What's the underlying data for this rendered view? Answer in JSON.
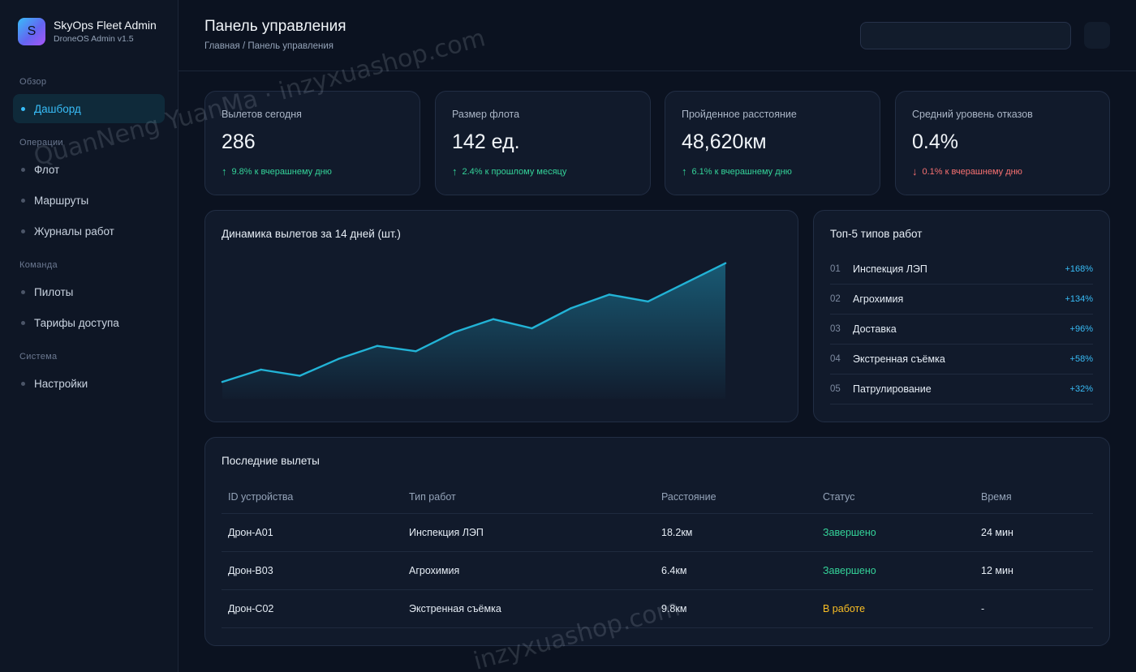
{
  "brand": {
    "logo_letter": "S",
    "name": "SkyOps Fleet Admin",
    "subtitle": "DroneOS Admin v1.5"
  },
  "sidebar": {
    "sections": [
      {
        "label": "Обзор",
        "items": [
          {
            "label": "Дашборд",
            "active": true
          }
        ]
      },
      {
        "label": "Операции",
        "items": [
          {
            "label": "Флот"
          },
          {
            "label": "Маршруты"
          },
          {
            "label": "Журналы работ"
          }
        ]
      },
      {
        "label": "Команда",
        "items": [
          {
            "label": "Пилоты"
          },
          {
            "label": "Тарифы доступа"
          }
        ]
      },
      {
        "label": "Система",
        "items": [
          {
            "label": "Настройки"
          }
        ]
      }
    ]
  },
  "header": {
    "title": "Панель управления",
    "breadcrumb": "Главная / Панель управления"
  },
  "stats": [
    {
      "label": "Вылетов сегодня",
      "value": "286",
      "arrow": "↑",
      "change": "9.8% к вчерашнему дню",
      "trend": "up"
    },
    {
      "label": "Размер флота",
      "value": "142 ед.",
      "arrow": "↑",
      "change": "2.4% к прошлому месяцу",
      "trend": "up"
    },
    {
      "label": "Пройденное расстояние",
      "value": "48,620км",
      "arrow": "↑",
      "change": "6.1% к вчерашнему дню",
      "trend": "up"
    },
    {
      "label": "Средний уровень отказов",
      "value": "0.4%",
      "arrow": "↓",
      "change": "0.1% к вчерашнему дню",
      "trend": "down"
    }
  ],
  "chart_data": {
    "type": "area",
    "title": "Динамика вылетов за 14 дней (шт.)",
    "x": [
      1,
      2,
      3,
      4,
      5,
      6,
      7,
      8,
      9,
      10,
      11,
      12,
      13,
      14
    ],
    "values": [
      180,
      196,
      188,
      210,
      227,
      220,
      245,
      262,
      250,
      276,
      294,
      285,
      310,
      335
    ],
    "ylim": [
      160,
      340
    ],
    "grid": false,
    "colors": {
      "line": "#22b3d6",
      "fill": "#1b6f8c"
    }
  },
  "top5": {
    "title": "Топ-5 типов работ",
    "items": [
      {
        "num": "01",
        "name": "Инспекция ЛЭП",
        "pct": "+168%"
      },
      {
        "num": "02",
        "name": "Агрохимия",
        "pct": "+134%"
      },
      {
        "num": "03",
        "name": "Доставка",
        "pct": "+96%"
      },
      {
        "num": "04",
        "name": "Экстренная съёмка",
        "pct": "+58%"
      },
      {
        "num": "05",
        "name": "Патрулирование",
        "pct": "+32%"
      }
    ]
  },
  "recent": {
    "title": "Последние вылеты",
    "columns": [
      "ID устройства",
      "Тип работ",
      "Расстояние",
      "Статус",
      "Время"
    ],
    "rows": [
      {
        "id": "Дрон-A01",
        "type": "Инспекция ЛЭП",
        "distance": "18.2км",
        "status": "Завершено",
        "status_kind": "done",
        "time": "24 мин"
      },
      {
        "id": "Дрон-B03",
        "type": "Агрохимия",
        "distance": "6.4км",
        "status": "Завершено",
        "status_kind": "done",
        "time": "12 мин"
      },
      {
        "id": "Дрон-C02",
        "type": "Экстренная съёмка",
        "distance": "9.8км",
        "status": "В работе",
        "status_kind": "work",
        "time": "-"
      }
    ]
  },
  "watermarks": [
    "QuanNeng YuanMa · inzyxuashop.com",
    "inzyxuashop.com"
  ],
  "colors": {
    "accent": "#38bdf8",
    "up": "#34d399",
    "down": "#f87171",
    "in_progress": "#fbbf24"
  }
}
